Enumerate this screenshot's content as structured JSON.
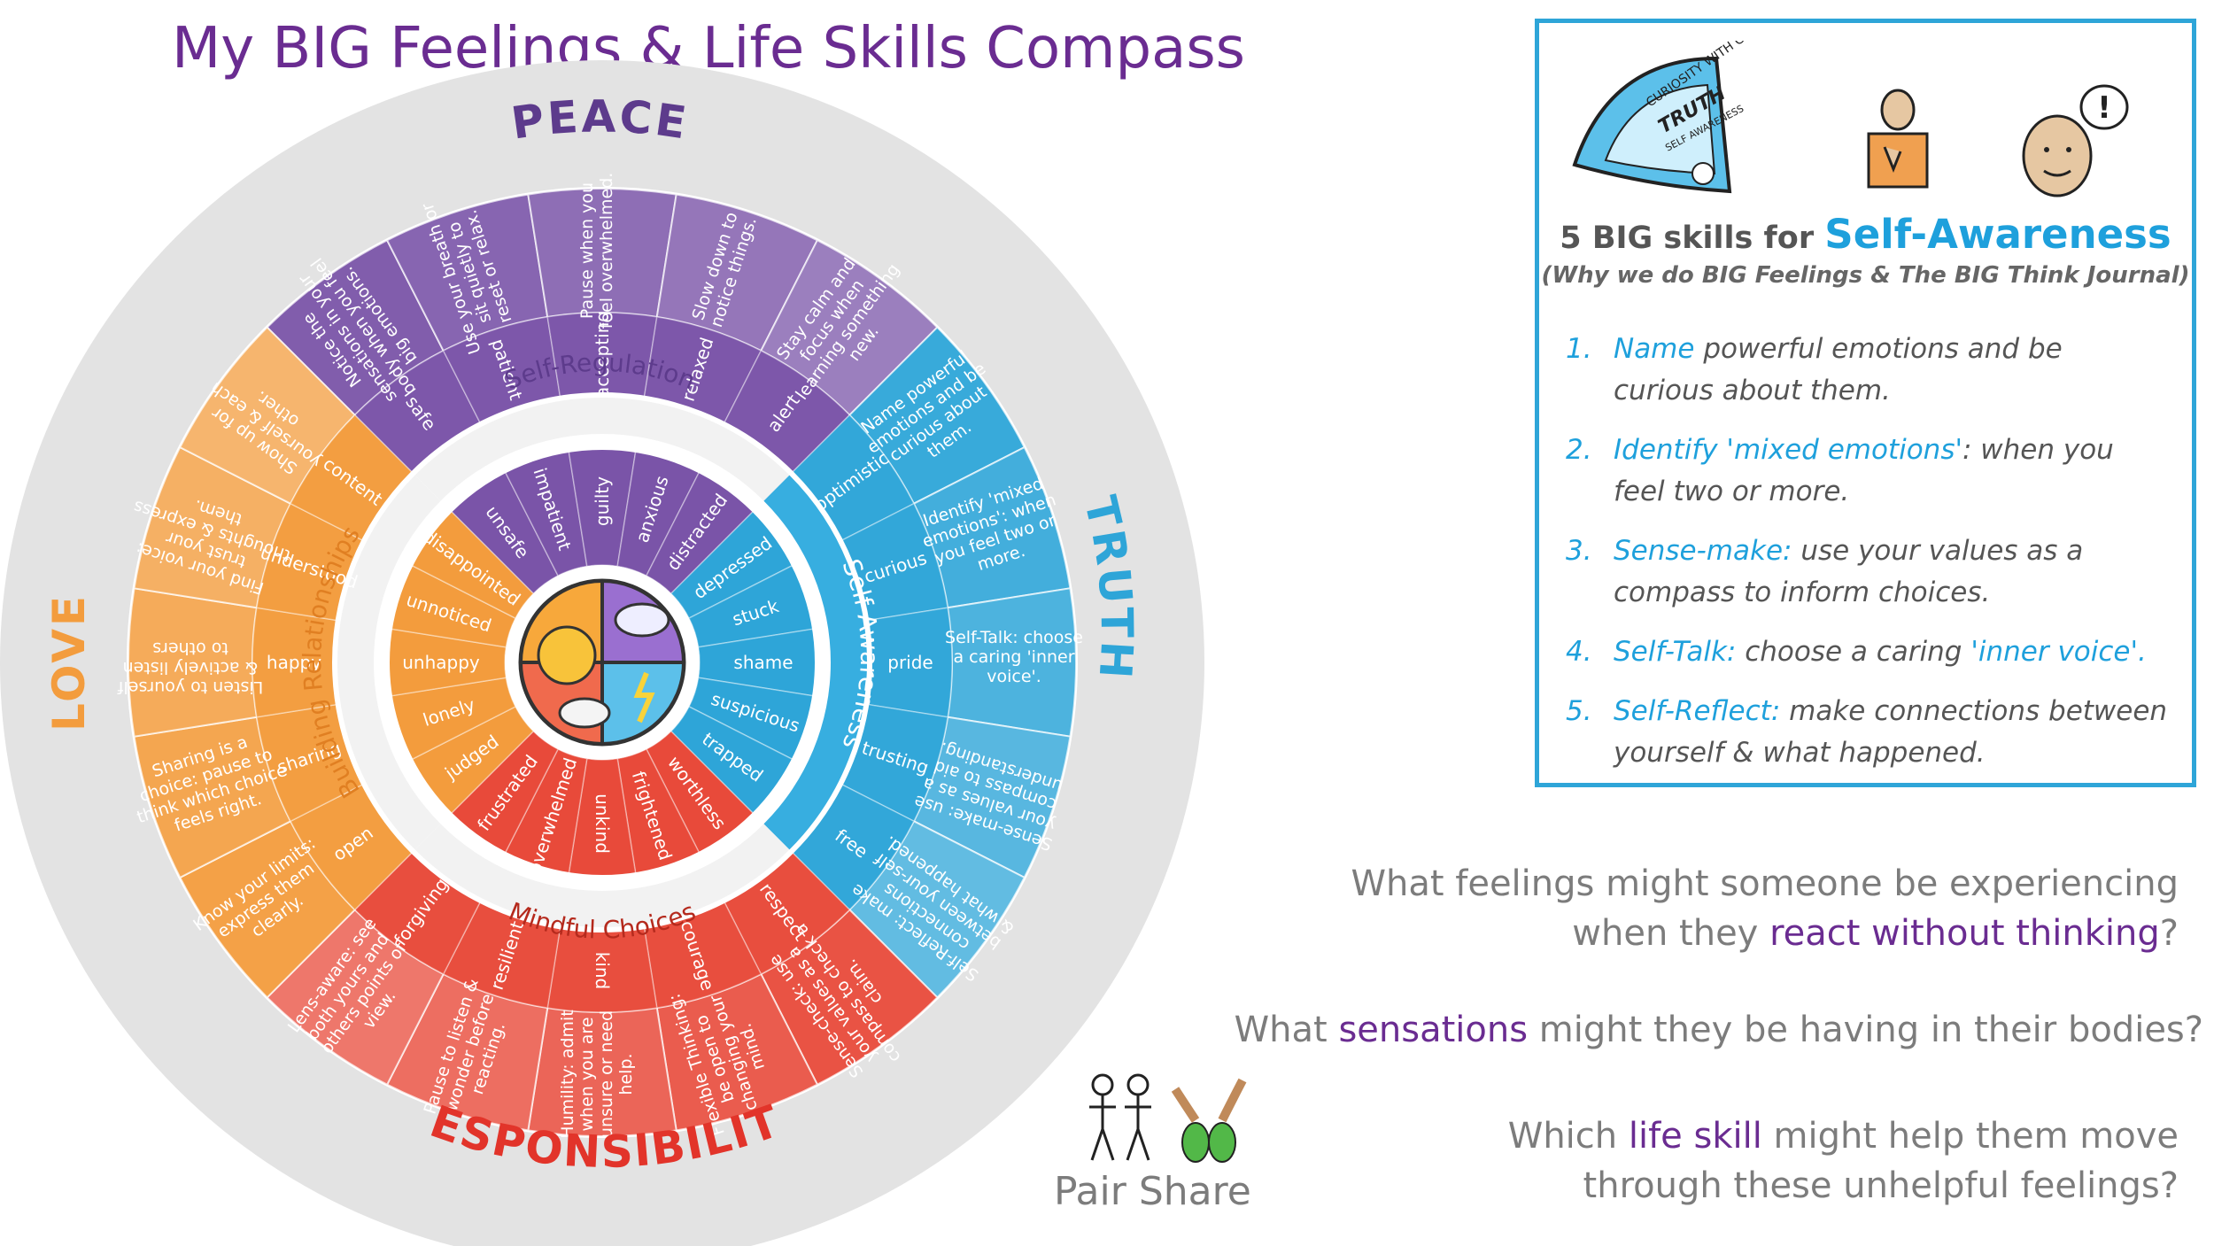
{
  "title": "My BIG Feelings & Life Skills Compass",
  "colors": {
    "title": "#6a2c91",
    "peace": "#7a54a8",
    "truth": "#2ea5d8",
    "responsibility": "#e84a3a",
    "love": "#f39c3d",
    "outer_ring": "#e3e3e3"
  },
  "compass": {
    "outer_labels": {
      "peace": "PEACE",
      "truth": "TRUTH",
      "responsibility": "RESPONSIBILITY",
      "love": "LOVE"
    },
    "ring_labels": {
      "peace": "Self-Regulation",
      "truth": "Self-Awareness",
      "responsibility": "Mindful Choices",
      "love": "Building Relationships"
    },
    "outer_segments": [
      {
        "quadrant": "peace",
        "text": "Notice the sensations in your body when you feel big emotions."
      },
      {
        "quadrant": "peace",
        "text": "Use your breath or sit quietly to reset or relax."
      },
      {
        "quadrant": "peace",
        "text": "Pause when you feel overwhelmed."
      },
      {
        "quadrant": "peace",
        "text": "Slow down to notice things."
      },
      {
        "quadrant": "peace",
        "text": "Stay calm and focus when learning something new."
      },
      {
        "quadrant": "truth",
        "text": "Name powerful emotions and be curious about them."
      },
      {
        "quadrant": "truth",
        "text": "Identify 'mixed emotions': when you feel two or more."
      },
      {
        "quadrant": "truth",
        "text": "Self-Talk: choose a caring 'inner voice'."
      },
      {
        "quadrant": "truth",
        "text": "Sense-make: use your values as a compass to aid understanding."
      },
      {
        "quadrant": "truth",
        "text": "Self-Reflect: make connections between your-self & what happened."
      },
      {
        "quadrant": "responsibility",
        "text": "Sense-check: use your values as a compass to check a claim."
      },
      {
        "quadrant": "responsibility",
        "text": "Flexible Thinking: be open to changing your mind."
      },
      {
        "quadrant": "responsibility",
        "text": "Humility: admit when you are unsure or need help."
      },
      {
        "quadrant": "responsibility",
        "text": "Pause to listen & wonder before reacting."
      },
      {
        "quadrant": "responsibility",
        "text": "Lens-aware: see both yours and others points of view."
      },
      {
        "quadrant": "love",
        "text": "Know your limits: express them clearly."
      },
      {
        "quadrant": "love",
        "text": "Sharing is a choice: pause to think which choice feels right."
      },
      {
        "quadrant": "love",
        "text": "Listen to yourself & actively listen to others"
      },
      {
        "quadrant": "love",
        "text": "Find your voice: trust your thoughts & express them."
      },
      {
        "quadrant": "love",
        "text": "Show up for yourself & each other."
      }
    ],
    "feeling_pairs": [
      {
        "quadrant": "peace",
        "outer": "safe",
        "inner": "unsafe"
      },
      {
        "quadrant": "peace",
        "outer": "patient",
        "inner": "impatient"
      },
      {
        "quadrant": "peace",
        "outer": "accepting",
        "inner": "guilty"
      },
      {
        "quadrant": "peace",
        "outer": "relaxed",
        "inner": "anxious"
      },
      {
        "quadrant": "peace",
        "outer": "alert",
        "inner": "distracted"
      },
      {
        "quadrant": "truth",
        "outer": "optimistic",
        "inner": "depressed"
      },
      {
        "quadrant": "truth",
        "outer": "curious",
        "inner": "stuck"
      },
      {
        "quadrant": "truth",
        "outer": "pride",
        "inner": "shame"
      },
      {
        "quadrant": "truth",
        "outer": "trusting",
        "inner": "suspicious"
      },
      {
        "quadrant": "truth",
        "outer": "free",
        "inner": "trapped"
      },
      {
        "quadrant": "responsibility",
        "outer": "respect",
        "inner": "worthless"
      },
      {
        "quadrant": "responsibility",
        "outer": "courage",
        "inner": "frightened"
      },
      {
        "quadrant": "responsibility",
        "outer": "kind",
        "inner": "unkind"
      },
      {
        "quadrant": "responsibility",
        "outer": "resilient",
        "inner": "overwhelmed"
      },
      {
        "quadrant": "responsibility",
        "outer": "forgiving",
        "inner": "frustrated"
      },
      {
        "quadrant": "love",
        "outer": "open",
        "inner": "judged"
      },
      {
        "quadrant": "love",
        "outer": "sharing",
        "inner": "lonely"
      },
      {
        "quadrant": "love",
        "outer": "happy",
        "inner": "unhappy"
      },
      {
        "quadrant": "love",
        "outer": "understood",
        "inner": "unnoticed"
      },
      {
        "quadrant": "love",
        "outer": "content",
        "inner": "disappointed"
      }
    ]
  },
  "infobox": {
    "badge_text": [
      "CURIOSITY WITH CARE",
      "TRUTH",
      "SELF AWARENESS"
    ],
    "heading_prefix": "5 BIG skills for ",
    "heading_highlight": "Self-Awareness",
    "subheading": "(Why we do BIG Feelings & The BIG Think Journal)",
    "skills": [
      {
        "num": "1.",
        "key": "Name",
        "rest": " powerful emotions and be curious about them."
      },
      {
        "num": "2.",
        "key": "Identify 'mixed emotions'",
        "rest": ": when you feel two or more."
      },
      {
        "num": "3.",
        "key": "Sense-make:",
        "rest": " use your values as a compass to inform choices."
      },
      {
        "num": "4.",
        "key": "Self-Talk:",
        "rest": " choose a caring ",
        "key2": "'inner voice'."
      },
      {
        "num": "5.",
        "key": "Self-Reflect:",
        "rest": " make connections between yourself & what happened."
      }
    ]
  },
  "questions": {
    "q1_a": "What feelings might someone be experiencing",
    "q1_b": "when they ",
    "q1_emph": "react without thinking",
    "q1_c": "?",
    "q2_a": "What ",
    "q2_emph": "sensations",
    "q2_b": " might they be having in their bodies?",
    "q3_a": "Which ",
    "q3_emph": "life skill",
    "q3_b": " might help them move",
    "q3_c": "through these unhelpful feelings?"
  },
  "pair_share": "Pair Share"
}
